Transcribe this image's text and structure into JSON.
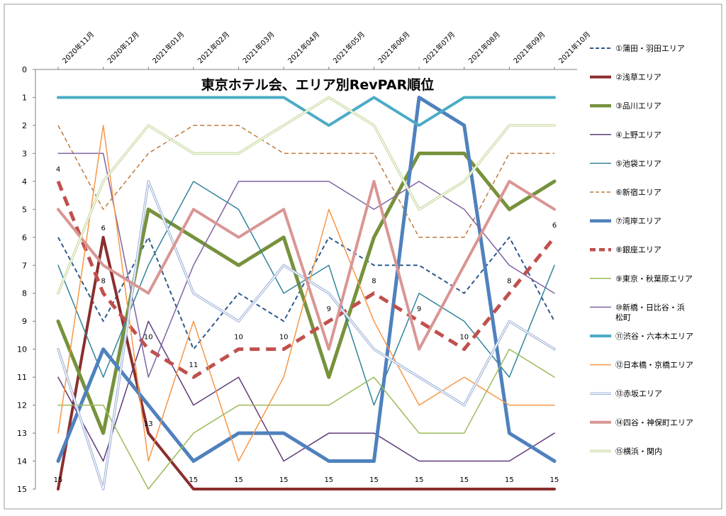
{
  "chart_data": {
    "type": "line",
    "title": "東京ホテル会、エリア別RevPAR順位",
    "categories": [
      "2020年11月",
      "2020年12月",
      "2021年01月",
      "2021年02月",
      "2021年03月",
      "2021年04月",
      "2021年05月",
      "2021年06月",
      "2021年07月",
      "2021年08月",
      "2021年09月",
      "2021年10月"
    ],
    "y_ticks": [
      "0",
      "1",
      "2",
      "3",
      "4",
      "5",
      "6",
      "7",
      "8",
      "9",
      "10",
      "11",
      "12",
      "13",
      "14",
      "15"
    ],
    "ylim": [
      0,
      15
    ],
    "y_inverted": true,
    "grid": false,
    "legend_position": "right",
    "series": [
      {
        "name": "①蒲田・羽田エリア",
        "color": "#2E5A8C",
        "style": "dashed",
        "width": 2,
        "values": [
          6,
          9,
          6,
          10,
          8,
          9,
          6,
          7,
          7,
          8,
          6,
          9
        ]
      },
      {
        "name": "②浅草エリア",
        "color": "#8B2E2E",
        "style": "solid",
        "width": 4,
        "values": [
          15,
          6,
          13,
          15,
          15,
          15,
          15,
          15,
          15,
          15,
          15,
          15
        ]
      },
      {
        "name": "③品川エリア",
        "color": "#76923C",
        "style": "solid",
        "width": 5,
        "values": [
          9,
          13,
          5,
          6,
          7,
          6,
          11,
          6,
          3,
          3,
          5,
          4
        ]
      },
      {
        "name": "④上野エリア",
        "color": "#5F3B7A",
        "style": "solid",
        "width": 1.5,
        "values": [
          11,
          14,
          9,
          12,
          11,
          14,
          13,
          13,
          14,
          14,
          14,
          13
        ]
      },
      {
        "name": "⑤池袋エリア",
        "color": "#31849B",
        "style": "solid",
        "width": 1.5,
        "values": [
          7,
          11,
          7,
          4,
          5,
          8,
          7,
          12,
          8,
          9,
          11,
          7
        ]
      },
      {
        "name": "⑥新宿エリア",
        "color": "#C0783C",
        "style": "dashed",
        "width": 1.5,
        "values": [
          2,
          5,
          3,
          2,
          2,
          3,
          3,
          3,
          6,
          6,
          3,
          3
        ]
      },
      {
        "name": "⑦湾岸エリア",
        "color": "#4F81BD",
        "style": "solid",
        "width": 5,
        "values": [
          14,
          10,
          12,
          14,
          13,
          13,
          14,
          14,
          1,
          2,
          13,
          14
        ]
      },
      {
        "name": "⑧銀座エリア",
        "color": "#C0504D",
        "style": "dashed",
        "width": 5,
        "values": [
          4,
          8,
          10,
          11,
          10,
          10,
          9,
          8,
          9,
          10,
          8,
          6
        ]
      },
      {
        "name": "⑨東京・秋葉原エリア",
        "color": "#9BBB59",
        "style": "solid",
        "width": 1.5,
        "values": [
          12,
          12,
          15,
          13,
          12,
          12,
          12,
          11,
          13,
          13,
          10,
          11
        ]
      },
      {
        "name": "⑩新橋・日比谷・浜松町",
        "color": "#8064A2",
        "style": "solid",
        "width": 1.5,
        "values": [
          3,
          3,
          11,
          7,
          4,
          4,
          4,
          5,
          4,
          5,
          7,
          8
        ]
      },
      {
        "name": "⑪渋谷・六本木エリア",
        "color": "#4BACC6",
        "style": "solid",
        "width": 4,
        "values": [
          1,
          1,
          1,
          1,
          1,
          1,
          2,
          1,
          2,
          1,
          1,
          1
        ]
      },
      {
        "name": "⑫日本橋・京橋エリア",
        "color": "#F79646",
        "style": "solid",
        "width": 1.5,
        "values": [
          13,
          2,
          14,
          9,
          14,
          11,
          5,
          9,
          12,
          11,
          12,
          12
        ]
      },
      {
        "name": "⑬赤坂エリア",
        "color": "#A0B4D8",
        "style": "double",
        "width": 1.5,
        "values": [
          10,
          15,
          4,
          8,
          9,
          7,
          8,
          10,
          11,
          12,
          9,
          10
        ]
      },
      {
        "name": "⑭四谷・神保町エリア",
        "color": "#D99694",
        "style": "solid",
        "width": 4,
        "values": [
          5,
          7,
          8,
          5,
          6,
          5,
          10,
          4,
          10,
          7,
          4,
          5
        ]
      },
      {
        "name": "⑮横浜・関内",
        "color": "#C4D79B",
        "style": "double",
        "width": 1.5,
        "values": [
          8,
          4,
          2,
          3,
          3,
          2,
          1,
          2,
          5,
          4,
          2,
          2
        ]
      }
    ],
    "data_labels": [
      {
        "series": "⑧銀座エリア",
        "values": [
          "4",
          "8",
          "10",
          "11",
          "10",
          "10",
          "9",
          "8",
          "9",
          "10",
          "8",
          "6"
        ]
      },
      {
        "series": "②浅草エリア",
        "values": [
          "15",
          "6",
          "13",
          "15",
          "15",
          "15",
          "15",
          "15",
          "15",
          "15",
          "15",
          "15"
        ]
      }
    ]
  }
}
